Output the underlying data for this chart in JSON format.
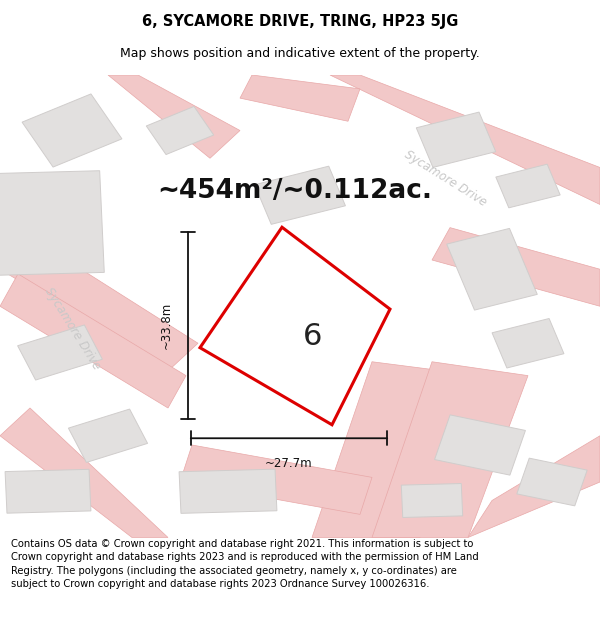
{
  "title": "6, SYCAMORE DRIVE, TRING, HP23 5JG",
  "subtitle": "Map shows position and indicative extent of the property.",
  "area_text": "~454m²/~0.112ac.",
  "width_text": "~27.7m",
  "height_text": "~33.8m",
  "number_label": "6",
  "road_label_top": "Sycamore Drive",
  "road_label_left": "Sycamore Drive",
  "footer_text": "Contains OS data © Crown copyright and database right 2021. This information is subject to Crown copyright and database rights 2023 and is reproduced with the permission of HM Land Registry. The polygons (including the associated geometry, namely x, y co-ordinates) are subject to Crown copyright and database rights 2023 Ordnance Survey 100026316.",
  "map_bg": "#f8f7f6",
  "road_color": "#f2c8c8",
  "road_edge_color": "#e8a8a8",
  "building_color": "#e2e0df",
  "building_edge": "#d0cdcc",
  "plot_fill": "#ffffff",
  "plot_border_color": "#dd0000",
  "dim_color": "#111111",
  "road_label_color": "#c8c8c8",
  "title_fontsize": 10.5,
  "subtitle_fontsize": 9,
  "area_fontsize": 19,
  "number_fontsize": 22,
  "footer_fontsize": 7.2
}
